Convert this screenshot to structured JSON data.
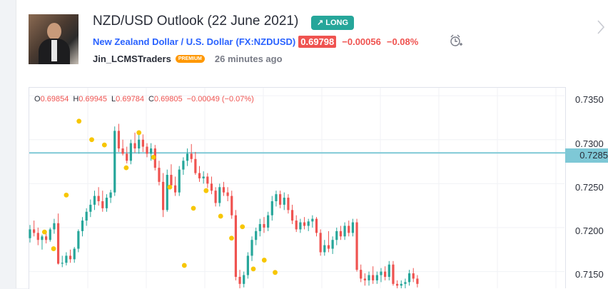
{
  "header": {
    "title": "NZD/USD Outlook (22 June 2021)",
    "badge": "↗ LONG",
    "symbol_name": "New Zealand Dollar / U.S. Dollar",
    "symbol_code": "(FX:NZDUSD)",
    "price": "0.69798",
    "change": "−0.00056",
    "change_pct": "−0.08%",
    "author": "Jin_LCMSTraders",
    "author_badge": "PREMIUM",
    "time_ago": "26 minutes ago"
  },
  "ohlc": {
    "o_label": "O",
    "o": "0.69854",
    "h_label": "H",
    "h": "0.69945",
    "l_label": "L",
    "l": "0.69784",
    "c_label": "C",
    "c": "0.69805",
    "chg": "−0.00049 (−0.07%)"
  },
  "axis": {
    "ticks": [
      "0.7350",
      "0.7300",
      "0.7250",
      "0.7200",
      "0.7150"
    ],
    "level": "0.7285"
  },
  "colors": {
    "up": "#26a69a",
    "down": "#ef5350",
    "level_line": "#7ec8d6",
    "marker": "#f7c600",
    "accent": "#2962ff"
  },
  "chart_data": {
    "type": "candlestick",
    "ylim": [
      0.7131,
      0.7359
    ],
    "horizontal_level": 0.7285,
    "candles": [
      [
        0.7188,
        0.7203,
        0.7183,
        0.7198
      ],
      [
        0.7198,
        0.7208,
        0.719,
        0.7194
      ],
      [
        0.7194,
        0.72,
        0.718,
        0.7186
      ],
      [
        0.7186,
        0.7192,
        0.7175,
        0.719
      ],
      [
        0.719,
        0.7196,
        0.7182,
        0.7186
      ],
      [
        0.7186,
        0.72,
        0.7184,
        0.7198
      ],
      [
        0.7198,
        0.721,
        0.7193,
        0.7205
      ],
      [
        0.7205,
        0.7216,
        0.7158,
        0.7159
      ],
      [
        0.7159,
        0.7168,
        0.7155,
        0.716
      ],
      [
        0.716,
        0.7172,
        0.7157,
        0.7168
      ],
      [
        0.7168,
        0.7175,
        0.716,
        0.7164
      ],
      [
        0.7164,
        0.7178,
        0.716,
        0.7176
      ],
      [
        0.7176,
        0.7198,
        0.7172,
        0.7196
      ],
      [
        0.7196,
        0.7212,
        0.719,
        0.7208
      ],
      [
        0.7208,
        0.7222,
        0.7202,
        0.7218
      ],
      [
        0.7218,
        0.7232,
        0.7212,
        0.7226
      ],
      [
        0.7226,
        0.7242,
        0.722,
        0.7236
      ],
      [
        0.7236,
        0.7246,
        0.7225,
        0.723
      ],
      [
        0.723,
        0.7242,
        0.7218,
        0.7222
      ],
      [
        0.7222,
        0.7238,
        0.7218,
        0.7234
      ],
      [
        0.7234,
        0.7243,
        0.7228,
        0.724
      ],
      [
        0.724,
        0.7315,
        0.7236,
        0.731
      ],
      [
        0.731,
        0.7318,
        0.7286,
        0.729
      ],
      [
        0.729,
        0.73,
        0.7282,
        0.7284
      ],
      [
        0.7284,
        0.7292,
        0.7273,
        0.7276
      ],
      [
        0.7276,
        0.73,
        0.7272,
        0.7296
      ],
      [
        0.7296,
        0.7308,
        0.7285,
        0.729
      ],
      [
        0.729,
        0.731,
        0.7284,
        0.73
      ],
      [
        0.73,
        0.7306,
        0.7286,
        0.7292
      ],
      [
        0.7292,
        0.7296,
        0.728,
        0.7284
      ],
      [
        0.7284,
        0.7296,
        0.7276,
        0.729
      ],
      [
        0.729,
        0.7294,
        0.7265,
        0.7268
      ],
      [
        0.7268,
        0.7276,
        0.7248,
        0.7252
      ],
      [
        0.7252,
        0.7262,
        0.7212,
        0.722
      ],
      [
        0.722,
        0.7266,
        0.7218,
        0.726
      ],
      [
        0.726,
        0.7272,
        0.7244,
        0.7248
      ],
      [
        0.7248,
        0.7258,
        0.7236,
        0.724
      ],
      [
        0.724,
        0.727,
        0.7236,
        0.7266
      ],
      [
        0.7266,
        0.728,
        0.726,
        0.7276
      ],
      [
        0.7276,
        0.729,
        0.727,
        0.7284
      ],
      [
        0.7284,
        0.7295,
        0.7274,
        0.7278
      ],
      [
        0.7278,
        0.7286,
        0.726,
        0.7262
      ],
      [
        0.7262,
        0.727,
        0.7252,
        0.7256
      ],
      [
        0.7256,
        0.7264,
        0.725,
        0.7258
      ],
      [
        0.7258,
        0.7262,
        0.7245,
        0.725
      ],
      [
        0.725,
        0.7258,
        0.7238,
        0.7242
      ],
      [
        0.7242,
        0.7246,
        0.7224,
        0.7228
      ],
      [
        0.7228,
        0.725,
        0.7224,
        0.7246
      ],
      [
        0.7246,
        0.7252,
        0.7236,
        0.724
      ],
      [
        0.724,
        0.7246,
        0.723,
        0.7236
      ],
      [
        0.7236,
        0.7242,
        0.721,
        0.7214
      ],
      [
        0.7214,
        0.722,
        0.714,
        0.7144
      ],
      [
        0.7144,
        0.7152,
        0.7131,
        0.7136
      ],
      [
        0.7136,
        0.715,
        0.7132,
        0.7146
      ],
      [
        0.7146,
        0.7172,
        0.7142,
        0.7168
      ],
      [
        0.7168,
        0.719,
        0.7162,
        0.7186
      ],
      [
        0.7186,
        0.72,
        0.718,
        0.7196
      ],
      [
        0.7196,
        0.721,
        0.719,
        0.7204
      ],
      [
        0.7204,
        0.7212,
        0.7194,
        0.72
      ],
      [
        0.72,
        0.7218,
        0.7196,
        0.7214
      ],
      [
        0.7214,
        0.7236,
        0.7208,
        0.723
      ],
      [
        0.723,
        0.7242,
        0.7224,
        0.7238
      ],
      [
        0.7238,
        0.7242,
        0.7222,
        0.7226
      ],
      [
        0.7226,
        0.724,
        0.722,
        0.7234
      ],
      [
        0.7234,
        0.7238,
        0.7216,
        0.722
      ],
      [
        0.722,
        0.7226,
        0.7204,
        0.7208
      ],
      [
        0.7208,
        0.7214,
        0.7195,
        0.7198
      ],
      [
        0.7198,
        0.721,
        0.7194,
        0.7206
      ],
      [
        0.7206,
        0.7212,
        0.7198,
        0.7202
      ],
      [
        0.7202,
        0.721,
        0.7196,
        0.7207
      ],
      [
        0.7207,
        0.7214,
        0.72,
        0.721
      ],
      [
        0.721,
        0.7212,
        0.719,
        0.7194
      ],
      [
        0.7194,
        0.7198,
        0.7168,
        0.7172
      ],
      [
        0.7172,
        0.7186,
        0.7168,
        0.718
      ],
      [
        0.718,
        0.7196,
        0.7172,
        0.7176
      ],
      [
        0.7176,
        0.719,
        0.717,
        0.7186
      ],
      [
        0.7186,
        0.72,
        0.718,
        0.7196
      ],
      [
        0.7196,
        0.7202,
        0.7186,
        0.719
      ],
      [
        0.719,
        0.7206,
        0.7186,
        0.7202
      ],
      [
        0.7202,
        0.7208,
        0.719,
        0.7194
      ],
      [
        0.7194,
        0.721,
        0.719,
        0.7206
      ],
      [
        0.7206,
        0.721,
        0.715,
        0.7152
      ],
      [
        0.7152,
        0.7158,
        0.7138,
        0.7142
      ],
      [
        0.7142,
        0.7148,
        0.7134,
        0.714
      ],
      [
        0.714,
        0.715,
        0.7134,
        0.7146
      ],
      [
        0.7146,
        0.7156,
        0.7136,
        0.714
      ],
      [
        0.714,
        0.715,
        0.7136,
        0.7146
      ],
      [
        0.7146,
        0.7154,
        0.7138,
        0.715
      ],
      [
        0.715,
        0.7156,
        0.714,
        0.7144
      ],
      [
        0.7144,
        0.7162,
        0.714,
        0.7158
      ],
      [
        0.7158,
        0.7162,
        0.7134,
        0.7136
      ],
      [
        0.7136,
        0.714,
        0.7131,
        0.7134
      ],
      [
        0.7134,
        0.714,
        0.7131,
        0.7136
      ],
      [
        0.7136,
        0.7142,
        0.7131,
        0.7138
      ],
      [
        0.7138,
        0.7152,
        0.7134,
        0.7148
      ],
      [
        0.7148,
        0.7154,
        0.7138,
        0.7142
      ],
      [
        0.7142,
        0.7146,
        0.7132,
        0.7136
      ]
    ],
    "markers": [
      {
        "index": 8,
        "price": 0.7195
      },
      {
        "index": 13,
        "price": 0.7176
      },
      {
        "index": 20,
        "price": 0.7237
      },
      {
        "index": 27,
        "price": 0.7321
      },
      {
        "index": 34,
        "price": 0.73
      },
      {
        "index": 41,
        "price": 0.7294
      },
      {
        "index": 53,
        "price": 0.7268
      },
      {
        "index": 60,
        "price": 0.7308
      },
      {
        "index": 68,
        "price": 0.728
      },
      {
        "index": 77,
        "price": 0.7246
      },
      {
        "index": 85,
        "price": 0.7157
      },
      {
        "index": 90,
        "price": 0.7222
      },
      {
        "index": 97,
        "price": 0.7242
      },
      {
        "index": 105,
        "price": 0.7213
      },
      {
        "index": 111,
        "price": 0.7188
      },
      {
        "index": 117,
        "price": 0.7201
      },
      {
        "index": 123,
        "price": 0.7153
      },
      {
        "index": 129,
        "price": 0.7163
      },
      {
        "index": 135,
        "price": 0.7149
      }
    ]
  }
}
